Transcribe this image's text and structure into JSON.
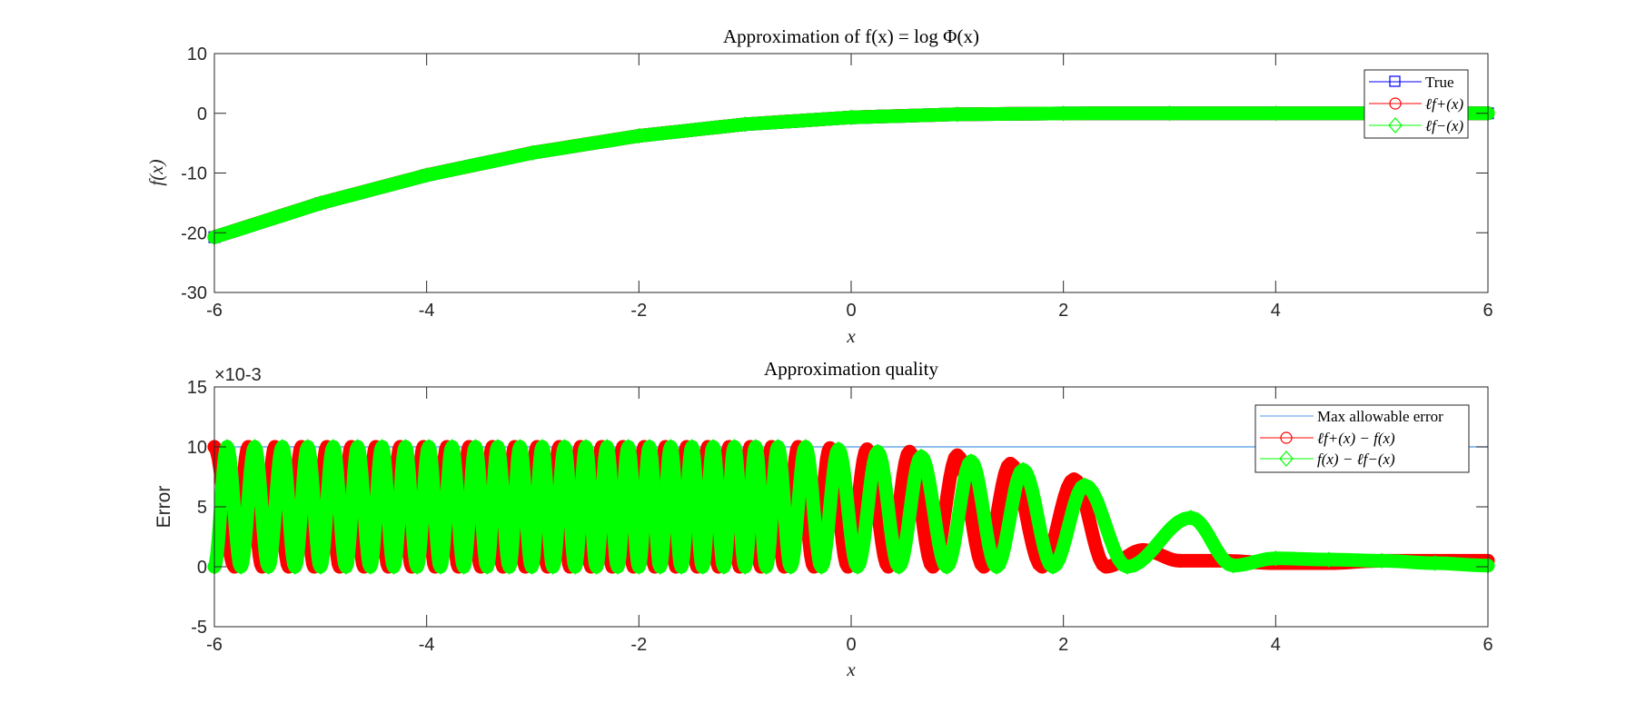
{
  "chart_data": [
    {
      "type": "scatter",
      "title": "Approximation of f(x) = log Φ(x)",
      "xlabel": "x",
      "ylabel": "f(x)",
      "xlim": [
        -6,
        6
      ],
      "ylim": [
        -30,
        10
      ],
      "xticks": [
        "-6",
        "-4",
        "-2",
        "0",
        "2",
        "4",
        "6"
      ],
      "yticks": [
        "10",
        "0",
        "-10",
        "-20",
        "-30"
      ],
      "grid": false,
      "legend_position": "top-right",
      "series": [
        {
          "name": "True",
          "color": "#0000ff",
          "marker": "square",
          "x": [
            -6,
            -5,
            -4,
            -3,
            -2,
            -1,
            0,
            1,
            2,
            3,
            4,
            5,
            6
          ],
          "y": [
            -20.74,
            -15.06,
            -10.36,
            -6.61,
            -3.78,
            -1.84,
            -0.69,
            -0.17,
            -0.02,
            0.0,
            0.0,
            0.0,
            0.0
          ]
        },
        {
          "name": "ℓf+(x)",
          "color": "#ff0000",
          "marker": "circle",
          "x": [
            -6,
            -5,
            -4,
            -3,
            -2,
            -1,
            0,
            1,
            2,
            3,
            4,
            5,
            6
          ],
          "y": [
            -20.73,
            -15.05,
            -10.35,
            -6.6,
            -3.77,
            -1.83,
            -0.68,
            -0.16,
            -0.02,
            0.0,
            0.0,
            0.0,
            0.0
          ]
        },
        {
          "name": "ℓf−(x)",
          "color": "#00ff00",
          "marker": "diamond",
          "x": [
            -6,
            -5,
            -4,
            -3,
            -2,
            -1,
            0,
            1,
            2,
            3,
            4,
            5,
            6
          ],
          "y": [
            -20.74,
            -15.06,
            -10.36,
            -6.61,
            -3.78,
            -1.84,
            -0.69,
            -0.17,
            -0.02,
            0.0,
            0.0,
            0.0,
            0.0
          ]
        }
      ]
    },
    {
      "type": "line",
      "title": "Approximation quality",
      "xlabel": "x",
      "ylabel": "Error",
      "ytick_multiplier": "×10-3",
      "xlim": [
        -6,
        6
      ],
      "ylim": [
        -5,
        15
      ],
      "xticks": [
        "-6",
        "-4",
        "-2",
        "0",
        "2",
        "4",
        "6"
      ],
      "yticks": [
        "15",
        "10",
        "5",
        "0",
        "-5"
      ],
      "grid": false,
      "legend_position": "top-right",
      "series": [
        {
          "name": "Max allowable error",
          "color": "#4d9be6",
          "x": [
            -6,
            6
          ],
          "y": [
            10,
            10
          ]
        },
        {
          "name": "ℓf+(x) − f(x)",
          "color": "#ff0000",
          "marker": "circle",
          "x": [
            -6.0,
            -5.81,
            -5.68,
            -5.55,
            -5.43,
            -5.3,
            -5.18,
            -5.06,
            -4.94,
            -4.82,
            -4.71,
            -4.59,
            -4.48,
            -4.36,
            -4.25,
            -4.14,
            -4.03,
            -3.92,
            -3.81,
            -3.7,
            -3.6,
            -3.49,
            -3.38,
            -3.28,
            -3.17,
            -3.07,
            -2.96,
            -2.86,
            -2.75,
            -2.65,
            -2.55,
            -2.45,
            -2.35,
            -2.25,
            -2.15,
            -2.05,
            -1.95,
            -1.85,
            -1.75,
            -1.65,
            -1.55,
            -1.45,
            -1.35,
            -1.25,
            -1.15,
            -1.05,
            -0.95,
            -0.85,
            -0.75,
            -0.63,
            -0.5,
            -0.35,
            -0.2,
            -0.03,
            0.15,
            0.35,
            0.55,
            0.77,
            1.0,
            1.25,
            1.5,
            1.8,
            2.1,
            2.4,
            2.75,
            3.1,
            3.5,
            4.0,
            4.5,
            5.0,
            5.5,
            6.0
          ],
          "y": [
            10,
            0,
            10,
            0,
            10,
            0,
            10,
            0,
            10,
            0,
            10,
            0,
            10,
            0,
            10,
            0,
            10,
            0,
            10,
            0,
            10,
            0,
            10,
            0,
            10,
            0,
            10,
            0,
            10,
            0,
            10,
            0,
            10,
            0,
            10,
            0,
            10,
            0,
            10,
            0,
            10,
            0,
            10,
            0,
            10,
            0,
            10,
            0,
            10,
            0,
            10,
            0,
            9.9,
            0,
            9.8,
            0,
            9.6,
            0,
            9.3,
            0,
            8.6,
            0,
            7.3,
            0,
            1.4,
            0.5,
            0.5,
            0.3,
            0.3,
            0.5,
            0.5,
            0.5
          ]
        },
        {
          "name": "f(x) − ℓf−(x)",
          "color": "#00ff00",
          "marker": "diamond",
          "x": [
            -6.0,
            -5.88,
            -5.75,
            -5.62,
            -5.49,
            -5.36,
            -5.24,
            -5.12,
            -5.0,
            -4.88,
            -4.76,
            -4.65,
            -4.53,
            -4.42,
            -4.31,
            -4.2,
            -4.09,
            -3.98,
            -3.87,
            -3.76,
            -3.65,
            -3.54,
            -3.43,
            -3.33,
            -3.22,
            -3.12,
            -3.01,
            -2.91,
            -2.81,
            -2.7,
            -2.6,
            -2.5,
            -2.4,
            -2.3,
            -2.2,
            -2.1,
            -2.0,
            -1.9,
            -1.8,
            -1.7,
            -1.6,
            -1.5,
            -1.4,
            -1.3,
            -1.2,
            -1.1,
            -1.0,
            -0.9,
            -0.8,
            -0.69,
            -0.57,
            -0.43,
            -0.28,
            -0.12,
            0.06,
            0.25,
            0.45,
            0.66,
            0.9,
            1.13,
            1.37,
            1.62,
            1.9,
            2.2,
            2.6,
            3.2,
            3.6,
            4.0,
            4.5,
            5.0,
            5.5,
            6.0
          ],
          "y": [
            0,
            10,
            0,
            10,
            0,
            10,
            0,
            10,
            0,
            10,
            0,
            10,
            0,
            10,
            0,
            10,
            0,
            10,
            0,
            10,
            0,
            10,
            0,
            10,
            0,
            10,
            0,
            10,
            0,
            10,
            0,
            10,
            0,
            10,
            0,
            10,
            0,
            10,
            0,
            10,
            0,
            10,
            0,
            10,
            0,
            10,
            0,
            10,
            0,
            10,
            0,
            10,
            0,
            9.8,
            0,
            9.6,
            0,
            9.2,
            0,
            8.8,
            0,
            8.1,
            0,
            6.8,
            0,
            4.1,
            0.1,
            0.7,
            0.6,
            0.5,
            0.3,
            0.1
          ]
        }
      ]
    }
  ]
}
